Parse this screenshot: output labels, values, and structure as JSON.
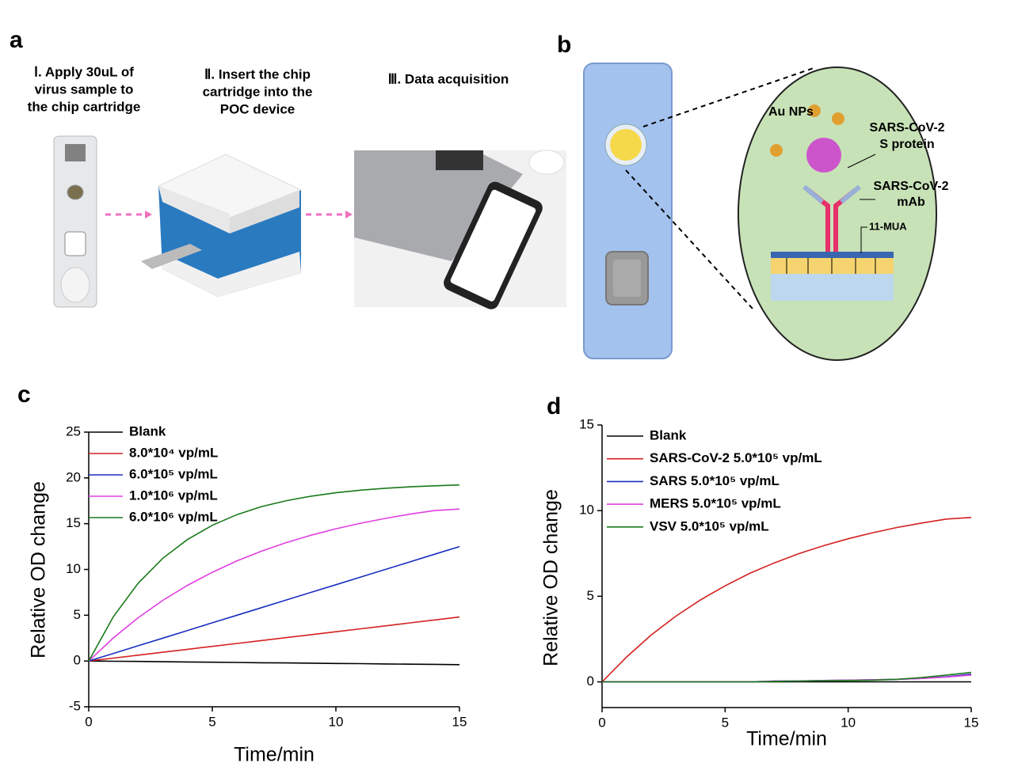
{
  "panel_labels": [
    "a",
    "b",
    "c",
    "d"
  ],
  "steps": [
    {
      "lines": [
        "Ⅰ. Apply 30uL of",
        "virus sample to",
        "the chip cartridge"
      ]
    },
    {
      "lines": [
        "Ⅱ. Insert the chip",
        "cartridge into the",
        "POC device"
      ]
    },
    {
      "lines": [
        "Ⅲ. Data acquisition"
      ]
    }
  ],
  "diagram": {
    "au_nps": "Au NPs",
    "s_protein": [
      "SARS-CoV-2",
      "S protein"
    ],
    "mab": [
      "SARS-CoV-2",
      "mAb"
    ],
    "mua": "11-MUA"
  },
  "chart_data": [
    {
      "type": "line",
      "xlabel": "Time/min",
      "ylabel": "Relative OD change",
      "x": [
        0,
        1,
        2,
        3,
        4,
        5,
        6,
        7,
        8,
        9,
        10,
        11,
        12,
        13,
        14,
        15
      ],
      "xlim": [
        0,
        15
      ],
      "xticks": [
        0,
        5,
        10,
        15
      ],
      "ylim": [
        -5,
        25
      ],
      "yticks": [
        -5,
        0,
        5,
        10,
        15,
        20,
        25
      ],
      "series": [
        {
          "name": "Blank",
          "color": "#000000",
          "values": [
            0,
            -0.03,
            -0.05,
            -0.08,
            -0.11,
            -0.13,
            -0.16,
            -0.19,
            -0.21,
            -0.24,
            -0.27,
            -0.29,
            -0.32,
            -0.35,
            -0.37,
            -0.4
          ]
        },
        {
          "name": "8.0*10⁴ vp/mL",
          "color": "#d42020",
          "values": [
            0,
            0.32,
            0.64,
            0.96,
            1.28,
            1.6,
            1.92,
            2.24,
            2.56,
            2.88,
            3.2,
            3.52,
            3.84,
            4.16,
            4.48,
            4.8
          ]
        },
        {
          "name": "6.0*10⁵ vp/mL",
          "color": "#1a2fc0",
          "values": [
            0,
            0.83,
            1.67,
            2.5,
            3.33,
            4.17,
            5,
            5.83,
            6.67,
            7.5,
            8.33,
            9.17,
            10,
            10.83,
            11.67,
            12.5
          ]
        },
        {
          "name": "1.0*10⁶ vp/mL",
          "color": "#e040e0",
          "values": [
            0,
            2.53,
            4.73,
            6.63,
            8.27,
            9.69,
            10.94,
            12.01,
            12.94,
            13.74,
            14.44,
            15.05,
            15.58,
            16.04,
            16.43,
            16.6
          ]
        },
        {
          "name": "6.0*10⁶ vp/mL",
          "color": "#1a7a1a",
          "values": [
            0,
            4.86,
            8.5,
            11.23,
            13.28,
            14.82,
            15.99,
            16.87,
            17.51,
            18.01,
            18.38,
            18.66,
            18.87,
            19.03,
            19.14,
            19.23
          ]
        }
      ]
    },
    {
      "type": "line",
      "xlabel": "Time/min",
      "ylabel": "Relative OD change",
      "x": [
        0,
        1,
        2,
        3,
        4,
        5,
        6,
        7,
        8,
        9,
        10,
        11,
        12,
        13,
        14,
        15
      ],
      "xlim": [
        0,
        15
      ],
      "xticks": [
        0,
        5,
        10,
        15
      ],
      "ylim": [
        -1.5,
        15
      ],
      "yticks": [
        0,
        5,
        10,
        15
      ],
      "series": [
        {
          "name": "Blank",
          "color": "#000000",
          "values": [
            0,
            0,
            0,
            0,
            0,
            0,
            0,
            0,
            0,
            0,
            0,
            0,
            0,
            0,
            0,
            0
          ]
        },
        {
          "name": "SARS-CoV-2 5.0*10⁵ vp/mL",
          "color": "#d42020",
          "values": [
            0,
            1.46,
            2.74,
            3.84,
            4.79,
            5.61,
            6.34,
            6.95,
            7.49,
            7.95,
            8.36,
            8.71,
            9.02,
            9.28,
            9.51,
            9.6
          ]
        },
        {
          "name": "SARS 5.0*10⁵ vp/mL",
          "color": "#1a2fc0",
          "values": [
            0,
            0,
            0,
            0,
            0,
            0,
            0,
            0.05,
            0.05,
            0.08,
            0.1,
            0.12,
            0.15,
            0.2,
            0.3,
            0.45
          ]
        },
        {
          "name": "MERS 5.0*10⁵ vp/mL",
          "color": "#e040e0",
          "values": [
            0,
            0,
            0,
            0,
            0,
            0,
            0,
            0.05,
            0.05,
            0.08,
            0.1,
            0.12,
            0.15,
            0.2,
            0.28,
            0.4
          ]
        },
        {
          "name": "VSV 5.0*10⁵ vp/mL",
          "color": "#1a7a1a",
          "values": [
            0,
            0,
            0,
            0,
            0,
            0,
            0,
            0.03,
            0.05,
            0.06,
            0.08,
            0.1,
            0.15,
            0.25,
            0.4,
            0.55
          ]
        }
      ]
    }
  ]
}
